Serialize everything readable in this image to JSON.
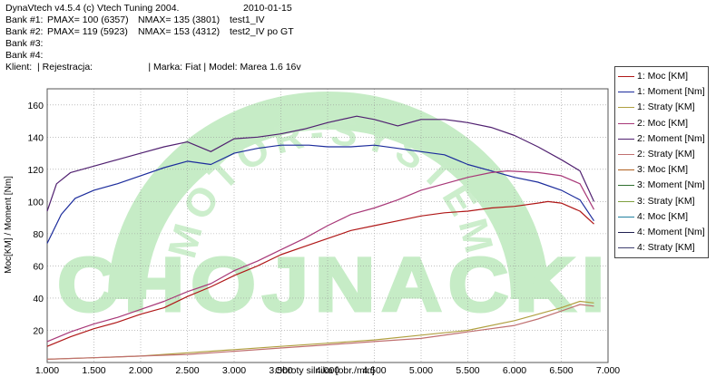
{
  "header": {
    "app_title": "DynaVtech v4.5.4 (c) Vtech Tuning 2004.",
    "date": "2010-01-15",
    "bank1": {
      "label": "Bank #1:",
      "pmax": "PMAX= 100 (6357)",
      "nmax": "NMAX= 135 (3801)",
      "name": "test1_IV"
    },
    "bank2": {
      "label": "Bank #2:",
      "pmax": "PMAX= 119 (5923)",
      "nmax": "NMAX= 153 (4312)",
      "name": "test2_IV po GT"
    },
    "bank3": {
      "label": "Bank #3:"
    },
    "bank4": {
      "label": "Bank #4:"
    },
    "client_line": "Klient:  | Rejestracja:                     | Marka: Fiat | Model: Marea 1.6 16v"
  },
  "watermark": {
    "top_text": "MOTOR-SYSTEM",
    "bottom_text": "CHOJNACKI",
    "color": "#c6ecc6"
  },
  "legend": [
    {
      "label": "1: Moc [KM]",
      "color": "#b01818"
    },
    {
      "label": "1: Moment [Nm]",
      "color": "#1c2c9c"
    },
    {
      "label": "1: Straty [KM]",
      "color": "#b0a040"
    },
    {
      "label": "2: Moc [KM]",
      "color": "#a83878"
    },
    {
      "label": "2: Moment [Nm]",
      "color": "#502070"
    },
    {
      "label": "2: Straty [KM]",
      "color": "#c07070"
    },
    {
      "label": "3: Moc [KM]",
      "color": "#b06020"
    },
    {
      "label": "3: Moment [Nm]",
      "color": "#307030"
    },
    {
      "label": "3: Straty [KM]",
      "color": "#80a040"
    },
    {
      "label": "4: Moc [KM]",
      "color": "#2080a0"
    },
    {
      "label": "4: Moment [Nm]",
      "color": "#202050"
    },
    {
      "label": "4: Straty [KM]",
      "color": "#404070"
    }
  ],
  "chart_data": {
    "type": "line",
    "xlabel": "Obroty silnika [obr./min]",
    "ylabel": "Moc[KM] / Moment [Nm]",
    "xlim": [
      1000,
      7000
    ],
    "ylim": [
      0,
      170
    ],
    "x_ticks": [
      1000,
      1500,
      2000,
      2500,
      3000,
      3500,
      4000,
      4500,
      5000,
      5500,
      6000,
      6500,
      7000
    ],
    "x_tick_labels": [
      "1.000",
      "1.500",
      "2.000",
      "2.500",
      "3.000",
      "3.500",
      "4.000",
      "4.500",
      "5.000",
      "5.500",
      "6.000",
      "6.500",
      "7.000"
    ],
    "y_ticks": [
      20,
      40,
      60,
      80,
      100,
      120,
      140,
      160
    ],
    "y_tick_labels": [
      "20",
      "40",
      "60",
      "80",
      "100",
      "120",
      "140",
      "160"
    ],
    "grid": true,
    "series": [
      {
        "name": "1: Moc [KM]",
        "color": "#b01818",
        "x": [
          1000,
          1250,
          1500,
          1750,
          2000,
          2250,
          2500,
          2750,
          3000,
          3250,
          3500,
          3750,
          4000,
          4250,
          4500,
          4750,
          5000,
          5250,
          5500,
          5750,
          6000,
          6250,
          6357,
          6500,
          6700,
          6850
        ],
        "y": [
          10,
          16,
          21,
          25,
          30,
          34,
          41,
          47,
          54,
          60,
          67,
          72,
          77,
          82,
          85,
          88,
          91,
          93,
          94,
          96,
          97,
          99,
          100,
          99,
          94,
          86
        ]
      },
      {
        "name": "1: Moment [Nm]",
        "color": "#1c2c9c",
        "x": [
          1000,
          1150,
          1300,
          1500,
          1750,
          2000,
          2250,
          2500,
          2750,
          3000,
          3250,
          3500,
          3801,
          4000,
          4250,
          4500,
          4750,
          5000,
          5250,
          5500,
          5750,
          6000,
          6250,
          6500,
          6700,
          6850
        ],
        "y": [
          74,
          92,
          102,
          107,
          111,
          116,
          121,
          125,
          123,
          130,
          133,
          135,
          135,
          134,
          134,
          135,
          133,
          131,
          129,
          123,
          119,
          115,
          112,
          107,
          101,
          88
        ]
      },
      {
        "name": "1: Straty [KM]",
        "color": "#b0a040",
        "x": [
          1000,
          1500,
          2000,
          2500,
          3000,
          3500,
          4000,
          4500,
          5000,
          5500,
          6000,
          6250,
          6500,
          6700,
          6850
        ],
        "y": [
          2,
          3,
          4,
          6,
          8,
          10,
          12,
          14,
          17,
          20,
          26,
          30,
          34,
          38,
          37
        ]
      },
      {
        "name": "2: Moc [KM]",
        "color": "#a83878",
        "x": [
          1000,
          1250,
          1500,
          1750,
          2000,
          2250,
          2500,
          2750,
          3000,
          3250,
          3500,
          3750,
          4000,
          4250,
          4500,
          4750,
          5000,
          5250,
          5500,
          5750,
          5923,
          6250,
          6500,
          6700,
          6850
        ],
        "y": [
          13,
          19,
          24,
          28,
          33,
          38,
          44,
          49,
          57,
          63,
          70,
          77,
          85,
          92,
          96,
          101,
          107,
          111,
          115,
          118,
          119,
          118,
          116,
          111,
          95
        ]
      },
      {
        "name": "2: Moment [Nm]",
        "color": "#502070",
        "x": [
          1000,
          1100,
          1250,
          1500,
          1750,
          2000,
          2250,
          2500,
          2750,
          3000,
          3250,
          3500,
          3750,
          4000,
          4312,
          4500,
          4750,
          5000,
          5250,
          5500,
          5750,
          6000,
          6250,
          6500,
          6700,
          6850
        ],
        "y": [
          94,
          111,
          118,
          122,
          126,
          130,
          134,
          137,
          131,
          139,
          140,
          142,
          145,
          149,
          153,
          151,
          147,
          151,
          151,
          149,
          146,
          141,
          134,
          126,
          119,
          100
        ]
      },
      {
        "name": "2: Straty [KM]",
        "color": "#c07070",
        "x": [
          1000,
          1500,
          2000,
          2500,
          3000,
          3500,
          4000,
          4500,
          5000,
          5500,
          6000,
          6250,
          6500,
          6700,
          6850
        ],
        "y": [
          2,
          3,
          4,
          5,
          7,
          9,
          11,
          13,
          15,
          19,
          23,
          27,
          32,
          36,
          35
        ]
      }
    ]
  }
}
